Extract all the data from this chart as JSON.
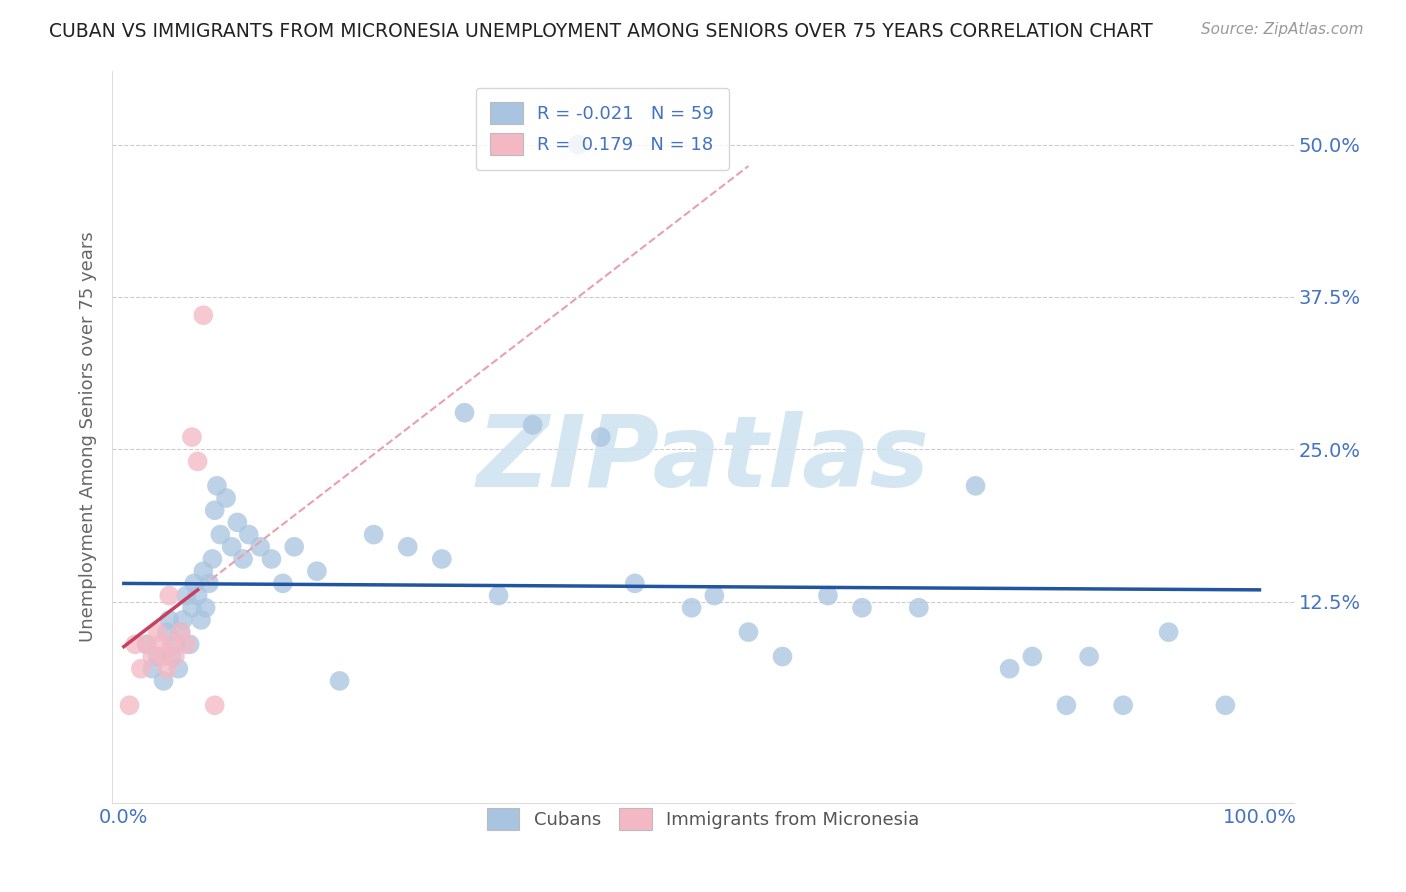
{
  "title": "CUBAN VS IMMIGRANTS FROM MICRONESIA UNEMPLOYMENT AMONG SENIORS OVER 75 YEARS CORRELATION CHART",
  "source": "Source: ZipAtlas.com",
  "ylabel": "Unemployment Among Seniors over 75 years",
  "xlim": [
    -0.01,
    1.03
  ],
  "ylim": [
    -0.04,
    0.56
  ],
  "xtick_positions": [
    0.0,
    1.0
  ],
  "xtick_labels": [
    "0.0%",
    "100.0%"
  ],
  "ytick_positions": [
    0.125,
    0.25,
    0.375,
    0.5
  ],
  "ytick_labels": [
    "12.5%",
    "25.0%",
    "37.5%",
    "50.0%"
  ],
  "R_blue": -0.021,
  "N_blue": 59,
  "R_pink": 0.179,
  "N_pink": 18,
  "blue_dot_color": "#a8c4e0",
  "pink_dot_color": "#f4b8c4",
  "blue_line_color": "#2255a0",
  "pink_solid_color": "#c84060",
  "pink_dash_color": "#e8a0b0",
  "watermark_text": "ZIPatlas",
  "watermark_color": "#d0e4f0",
  "blue_scatter_x": [
    0.02,
    0.025,
    0.03,
    0.035,
    0.038,
    0.04,
    0.042,
    0.045,
    0.048,
    0.05,
    0.052,
    0.055,
    0.058,
    0.06,
    0.062,
    0.065,
    0.068,
    0.07,
    0.072,
    0.075,
    0.078,
    0.08,
    0.082,
    0.085,
    0.09,
    0.095,
    0.1,
    0.105,
    0.11,
    0.12,
    0.13,
    0.14,
    0.15,
    0.17,
    0.19,
    0.22,
    0.25,
    0.28,
    0.3,
    0.33,
    0.36,
    0.4,
    0.42,
    0.45,
    0.5,
    0.52,
    0.55,
    0.58,
    0.62,
    0.65,
    0.7,
    0.75,
    0.78,
    0.8,
    0.83,
    0.85,
    0.88,
    0.92,
    0.97
  ],
  "blue_scatter_y": [
    0.09,
    0.07,
    0.08,
    0.06,
    0.1,
    0.11,
    0.08,
    0.09,
    0.07,
    0.1,
    0.11,
    0.13,
    0.09,
    0.12,
    0.14,
    0.13,
    0.11,
    0.15,
    0.12,
    0.14,
    0.16,
    0.2,
    0.22,
    0.18,
    0.21,
    0.17,
    0.19,
    0.16,
    0.18,
    0.17,
    0.16,
    0.14,
    0.17,
    0.15,
    0.06,
    0.18,
    0.17,
    0.16,
    0.28,
    0.13,
    0.27,
    0.5,
    0.26,
    0.14,
    0.12,
    0.13,
    0.1,
    0.08,
    0.13,
    0.12,
    0.12,
    0.22,
    0.07,
    0.08,
    0.04,
    0.08,
    0.04,
    0.1,
    0.04
  ],
  "pink_scatter_x": [
    0.005,
    0.01,
    0.015,
    0.02,
    0.025,
    0.03,
    0.032,
    0.035,
    0.038,
    0.04,
    0.042,
    0.045,
    0.05,
    0.055,
    0.06,
    0.065,
    0.07,
    0.08
  ],
  "pink_scatter_y": [
    0.04,
    0.09,
    0.07,
    0.09,
    0.08,
    0.1,
    0.09,
    0.08,
    0.07,
    0.13,
    0.09,
    0.08,
    0.1,
    0.09,
    0.26,
    0.24,
    0.36,
    0.04
  ]
}
